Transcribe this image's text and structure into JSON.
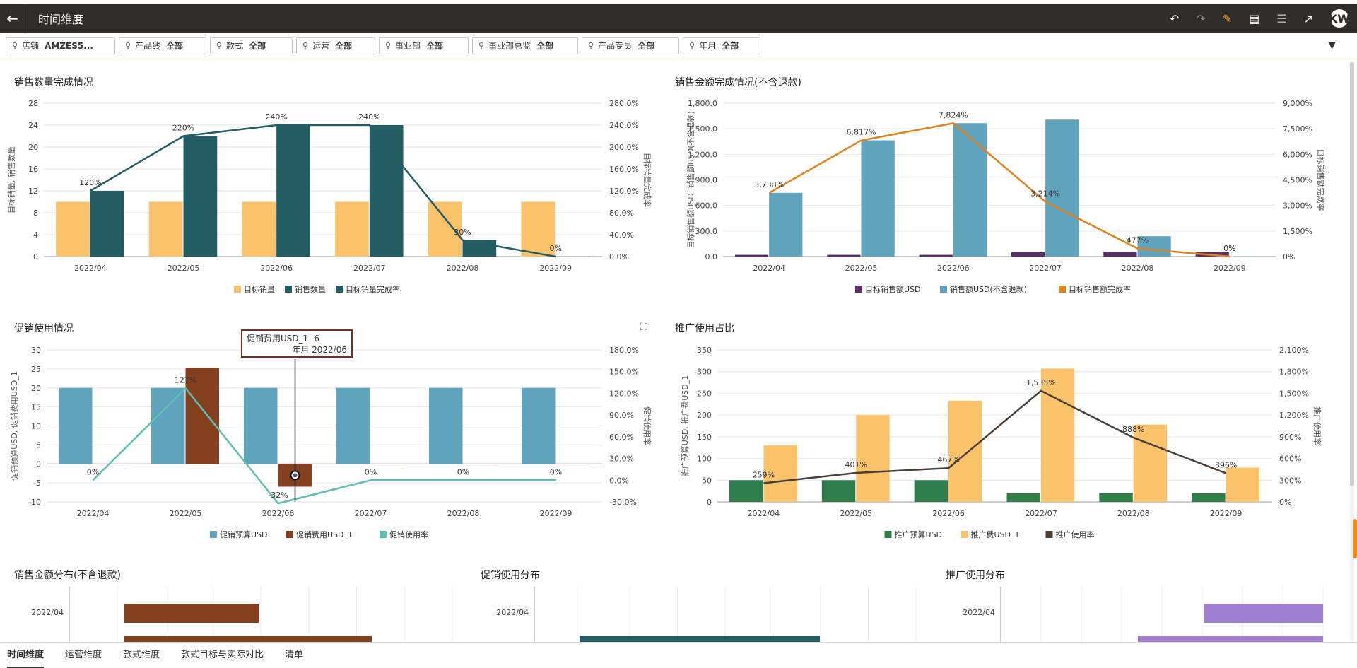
{
  "header": {
    "title": "时间维度",
    "avatar": "KW"
  },
  "filters": [
    {
      "label": "店铺",
      "value": "AMZES5..."
    },
    {
      "label": "产品线",
      "value": "全部"
    },
    {
      "label": "款式",
      "value": "全部"
    },
    {
      "label": "运营",
      "value": "全部"
    },
    {
      "label": "事业部",
      "value": "全部"
    },
    {
      "label": "事业部总监",
      "value": "全部"
    },
    {
      "label": "产品专员",
      "value": "全部"
    },
    {
      "label": "年月",
      "value": "全部"
    }
  ],
  "tooltip": {
    "line1": "促销费用USD_1 -6",
    "line2": "年月 2022/06"
  },
  "tabs": [
    "时间维度",
    "运营维度",
    "款式维度",
    "款式目标与实际对比",
    "清单"
  ],
  "colors": {
    "topbar": "#312d2a",
    "target_qty": "#fbc26c",
    "actual_qty": "#235d64",
    "target_amt": "#5a2d6b",
    "actual_amt": "#5fa3bd",
    "amt_rate": "#e0821e",
    "promo_budget": "#5fa3bd",
    "promo_cost": "#843f1f",
    "promo_rate": "#5fbfb3",
    "ad_budget": "#2f7d4a",
    "ad_cost": "#fbc26c",
    "ad_rate": "#4a3e37"
  },
  "chart_data": [
    {
      "id": "qty",
      "title": "销售数量完成情况",
      "type": "bar",
      "categories": [
        "2022/04",
        "2022/05",
        "2022/06",
        "2022/07",
        "2022/08",
        "2022/09"
      ],
      "series": [
        {
          "name": "目标销量",
          "type": "bar",
          "values": [
            10,
            10,
            10,
            10,
            10,
            10
          ]
        },
        {
          "name": "销售数量",
          "type": "bar",
          "values": [
            12,
            22,
            24,
            24,
            3,
            0
          ]
        },
        {
          "name": "目标销量完成率",
          "type": "line",
          "axis": "right",
          "values": [
            120,
            220,
            240,
            240,
            30,
            0
          ],
          "labels": [
            "120%",
            "220%",
            "240%",
            "240%",
            "30%",
            "0%"
          ]
        }
      ],
      "ylabel": "目标销量, 销售数量",
      "y2label": "目标销量完成率",
      "yticks": [
        "0",
        "4",
        "8",
        "12",
        "16",
        "20",
        "24",
        "28"
      ],
      "y2ticks": [
        "0.0%",
        "40.0%",
        "80.0%",
        "120.0%",
        "160.0%",
        "200.0%",
        "240.0%",
        "280.0%"
      ],
      "ylim": [
        0,
        28
      ],
      "y2lim": [
        0,
        280
      ]
    },
    {
      "id": "amt",
      "title": "销售金额完成情况(不含退款)",
      "type": "bar",
      "categories": [
        "2022/04",
        "2022/05",
        "2022/06",
        "2022/07",
        "2022/08",
        "2022/09"
      ],
      "series": [
        {
          "name": "目标销售额USD",
          "type": "bar",
          "values": [
            20,
            20,
            20,
            50,
            50,
            50
          ]
        },
        {
          "name": "销售额USD(不含退款)",
          "type": "bar",
          "values": [
            748,
            1364,
            1565,
            1607,
            239,
            0
          ]
        },
        {
          "name": "目标销售额完成率",
          "type": "line",
          "axis": "right",
          "values": [
            3738,
            6817,
            7824,
            3214,
            477,
            0
          ],
          "labels": [
            "3,738%",
            "6,817%",
            "7,824%",
            "3,214%",
            "477%",
            "0%"
          ]
        }
      ],
      "ylabel": "目标销售额USD, 销售额USD(不含退款)",
      "y2label": "目标销售额完成率",
      "yticks": [
        "0.0",
        "300.0",
        "600.0",
        "900.0",
        "1,200.0",
        "1,500.0",
        "1,800.0"
      ],
      "y2ticks": [
        "0%",
        "1,500%",
        "3,000%",
        "4,500%",
        "6,000%",
        "7,500%",
        "9,000%"
      ],
      "ylim": [
        0,
        1800
      ],
      "y2lim": [
        0,
        9000
      ]
    },
    {
      "id": "promo",
      "title": "促销使用情况",
      "type": "bar",
      "categories": [
        "2022/04",
        "2022/05",
        "2022/06",
        "2022/07",
        "2022/08",
        "2022/09"
      ],
      "series": [
        {
          "name": "促销预算USD",
          "type": "bar",
          "values": [
            20,
            20,
            20,
            20,
            20,
            20
          ]
        },
        {
          "name": "促销费用USD_1",
          "type": "bar",
          "values": [
            0,
            25.3,
            -6,
            0,
            0,
            0
          ]
        },
        {
          "name": "促销使用率",
          "type": "line",
          "axis": "right",
          "values": [
            0,
            127,
            -32,
            0,
            0,
            0
          ],
          "labels": [
            "0%",
            "127%",
            "-32%",
            "0%",
            "0%",
            "0%"
          ]
        }
      ],
      "ylabel": "促销预算USD, 促销费用USD_1",
      "y2label": "促销使用率",
      "yticks": [
        "-10",
        "-5",
        "0",
        "5",
        "10",
        "15",
        "20",
        "25",
        "30"
      ],
      "y2ticks": [
        "-30.0%",
        "0.0%",
        "30.0%",
        "60.0%",
        "90.0%",
        "120.0%",
        "150.0%",
        "180.0%"
      ],
      "ylim": [
        -10,
        30
      ],
      "y2lim": [
        -30,
        180
      ]
    },
    {
      "id": "ad",
      "title": "推广使用占比",
      "type": "bar",
      "categories": [
        "2022/04",
        "2022/05",
        "2022/06",
        "2022/07",
        "2022/08",
        "2022/09"
      ],
      "series": [
        {
          "name": "推广预算USD",
          "type": "bar",
          "values": [
            50,
            50,
            50,
            20,
            20,
            20
          ]
        },
        {
          "name": "推广费USD_1",
          "type": "bar",
          "values": [
            130,
            200,
            233,
            307,
            178,
            79
          ]
        },
        {
          "name": "推广使用率",
          "type": "line",
          "axis": "right",
          "values": [
            259,
            401,
            467,
            1535,
            888,
            396
          ],
          "labels": [
            "259%",
            "401%",
            "467%",
            "1,535%",
            "888%",
            "396%"
          ]
        }
      ],
      "ylabel": "推广预算USD, 推广费USD_1",
      "y2label": "推广使用率",
      "yticks": [
        "0",
        "50",
        "100",
        "150",
        "200",
        "250",
        "300",
        "350"
      ],
      "y2ticks": [
        "0%",
        "300%",
        "600%",
        "900%",
        "1,200%",
        "1,500%",
        "1,800%",
        "2,100%"
      ],
      "ylim": [
        0,
        350
      ],
      "y2lim": [
        0,
        2100
      ]
    },
    {
      "id": "dist_amt",
      "title": "销售金额分布(不含退款)",
      "type": "bar",
      "categories": [
        "2022/04"
      ],
      "values": [
        748
      ]
    },
    {
      "id": "dist_promo",
      "title": "促销使用分布",
      "type": "bar",
      "categories": [
        "2022/04"
      ],
      "values": [
        0
      ]
    },
    {
      "id": "dist_ad",
      "title": "推广使用分布",
      "type": "bar",
      "categories": [
        "2022/04"
      ],
      "values": [
        130
      ]
    }
  ]
}
